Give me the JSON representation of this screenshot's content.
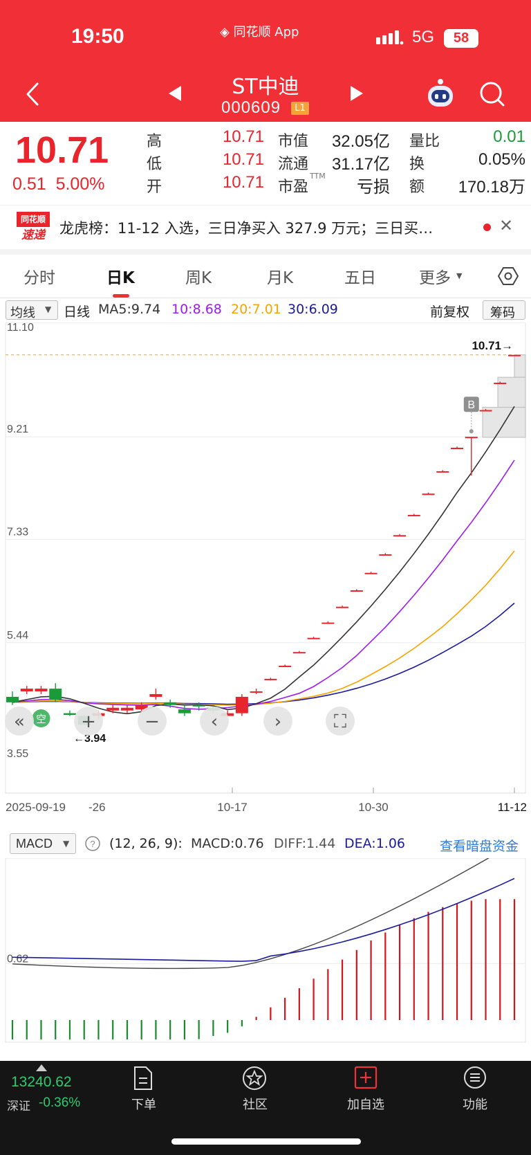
{
  "status_bar": {
    "time": "19:50",
    "app_label": "同花顺 App",
    "network": "5G",
    "battery": "58"
  },
  "nav": {
    "title": "ST中迪",
    "code": "000609",
    "badge": "L1"
  },
  "quote": {
    "price": "10.71",
    "change": "0.51",
    "change_pct": "5.00%",
    "rows": [
      [
        {
          "label": "高",
          "value": "10.71",
          "color": "red"
        },
        {
          "label": "市值",
          "value": "32.05亿",
          "color": "black"
        },
        {
          "label": "量比",
          "value": "0.01",
          "color": "green"
        }
      ],
      [
        {
          "label": "低",
          "value": "10.71",
          "color": "red"
        },
        {
          "label": "流通",
          "value": "31.17亿",
          "color": "black"
        },
        {
          "label": "换",
          "value": "0.05%",
          "color": "black"
        }
      ],
      [
        {
          "label": "开",
          "value": "10.71",
          "color": "red"
        },
        {
          "label": "市盈",
          "value": "亏损",
          "color": "black",
          "sup": "TTM"
        },
        {
          "label": "额",
          "value": "170.18万",
          "color": "black"
        }
      ]
    ]
  },
  "news": {
    "logo_top": "同花顺",
    "logo_bottom": "速递",
    "text": "龙虎榜：11-12 入选，三日净买入 327.9 万元；三日买…"
  },
  "tabs": [
    "分时",
    "日K",
    "周K",
    "月K",
    "五日",
    "更多"
  ],
  "active_tab": 1,
  "ma_bar": {
    "selector": "均线",
    "period": "日线",
    "ma5": "MA5:9.74",
    "ma10": "10:8.68",
    "ma20": "20:7.01",
    "ma30": "30:6.09",
    "adjust": "前复权",
    "chips": "筹码"
  },
  "colors": {
    "ma5": "#333333",
    "ma10": "#9b1cf0",
    "ma20": "#f5a500",
    "ma30": "#1a1a9c",
    "up": "#e8242d",
    "down": "#1a9b3a",
    "header": "#f12f36"
  },
  "kline": {
    "y_labels": [
      "11.10",
      "9.21",
      "7.33",
      "5.44",
      "3.55"
    ],
    "last_price_label": "10.71→",
    "min_label": "←3.94",
    "x_labels": [
      "2025-09-19",
      "-26",
      "10-17",
      "10-30",
      "11-12"
    ],
    "buy_marker": "B",
    "sell_marker": "空"
  },
  "chart_data": {
    "type": "candlestick",
    "ylim": [
      3.55,
      11.1
    ],
    "candles": [
      {
        "o": 4.45,
        "c": 4.35,
        "h": 4.55,
        "l": 4.3
      },
      {
        "o": 4.55,
        "c": 4.6,
        "h": 4.65,
        "l": 4.5
      },
      {
        "o": 4.55,
        "c": 4.6,
        "h": 4.65,
        "l": 4.5
      },
      {
        "o": 4.6,
        "c": 4.4,
        "h": 4.7,
        "l": 4.35
      },
      {
        "o": 4.15,
        "c": 4.12,
        "h": 4.2,
        "l": 4.1
      },
      {
        "o": 4.1,
        "c": 3.94,
        "h": 4.12,
        "l": 3.94
      },
      {
        "o": 4.1,
        "c": 4.15,
        "h": 4.2,
        "l": 4.05
      },
      {
        "o": 4.2,
        "c": 4.25,
        "h": 4.3,
        "l": 4.15
      },
      {
        "o": 4.2,
        "c": 4.25,
        "h": 4.3,
        "l": 4.15
      },
      {
        "o": 4.22,
        "c": 4.3,
        "h": 4.35,
        "l": 4.18
      },
      {
        "o": 4.45,
        "c": 4.5,
        "h": 4.6,
        "l": 4.4
      },
      {
        "o": 4.35,
        "c": 4.3,
        "h": 4.4,
        "l": 4.25
      },
      {
        "o": 4.22,
        "c": 4.15,
        "h": 4.3,
        "l": 4.1
      },
      {
        "o": 4.3,
        "c": 4.28,
        "h": 4.35,
        "l": 4.2
      },
      {
        "o": 4.25,
        "c": 4.2,
        "h": 4.3,
        "l": 4.15
      },
      {
        "o": 4.1,
        "c": 4.15,
        "h": 4.2,
        "l": 4.1
      },
      {
        "o": 4.15,
        "c": 4.45,
        "h": 4.5,
        "l": 4.1
      },
      {
        "o": 4.55,
        "c": 4.55,
        "h": 4.6,
        "l": 4.5
      },
      {
        "o": 4.78,
        "c": 4.78,
        "h": 4.8,
        "l": 4.75
      },
      {
        "o": 5.02,
        "c": 5.02,
        "h": 5.04,
        "l": 5.0
      },
      {
        "o": 5.27,
        "c": 5.27,
        "h": 5.29,
        "l": 5.25
      },
      {
        "o": 5.53,
        "c": 5.53,
        "h": 5.55,
        "l": 5.51
      },
      {
        "o": 5.81,
        "c": 5.81,
        "h": 5.83,
        "l": 5.79
      },
      {
        "o": 6.1,
        "c": 6.1,
        "h": 6.12,
        "l": 6.08
      },
      {
        "o": 6.4,
        "c": 6.4,
        "h": 6.42,
        "l": 6.38
      },
      {
        "o": 6.72,
        "c": 6.72,
        "h": 6.74,
        "l": 6.7
      },
      {
        "o": 7.06,
        "c": 7.06,
        "h": 7.08,
        "l": 7.04
      },
      {
        "o": 7.41,
        "c": 7.41,
        "h": 7.43,
        "l": 7.39
      },
      {
        "o": 7.78,
        "c": 7.78,
        "h": 7.8,
        "l": 7.76
      },
      {
        "o": 8.17,
        "c": 8.17,
        "h": 8.19,
        "l": 8.15
      },
      {
        "o": 8.58,
        "c": 8.58,
        "h": 8.6,
        "l": 8.56
      },
      {
        "o": 9.01,
        "c": 9.01,
        "h": 9.03,
        "l": 8.99
      },
      {
        "o": 9.21,
        "c": 9.21,
        "h": 9.21,
        "l": 8.5
      },
      {
        "o": 9.7,
        "c": 9.7,
        "h": 9.72,
        "l": 9.68
      },
      {
        "o": 10.2,
        "c": 10.2,
        "h": 10.22,
        "l": 10.18
      },
      {
        "o": 10.71,
        "c": 10.71,
        "h": 10.71,
        "l": 10.71
      }
    ],
    "ma_end_values": {
      "ma5": 9.74,
      "ma10": 8.68,
      "ma20": 7.01,
      "ma30": 6.09
    }
  },
  "macd": {
    "selector": "MACD",
    "params": "(12, 26, 9):",
    "macd": "MACD:0.76",
    "diff": "DIFF:1.44",
    "dea": "DEA:1.06",
    "link": "查看暗盘资金",
    "y_label": "0.62",
    "bars": [
      -0.18,
      -0.18,
      -0.19,
      -0.2,
      -0.22,
      -0.23,
      -0.24,
      -0.23,
      -0.22,
      -0.2,
      -0.18,
      -0.16,
      -0.14,
      -0.12,
      -0.1,
      -0.08,
      -0.04,
      0.02,
      0.08,
      0.14,
      0.2,
      0.26,
      0.32,
      0.38,
      0.44,
      0.5,
      0.55,
      0.6,
      0.64,
      0.68,
      0.71,
      0.73,
      0.75,
      0.76,
      0.76,
      0.76
    ]
  },
  "index_ticker": {
    "value": "13240.62",
    "name": "深证",
    "change": "-0.36%"
  },
  "bottom_nav": [
    "下单",
    "社区",
    "加自选",
    "功能"
  ]
}
